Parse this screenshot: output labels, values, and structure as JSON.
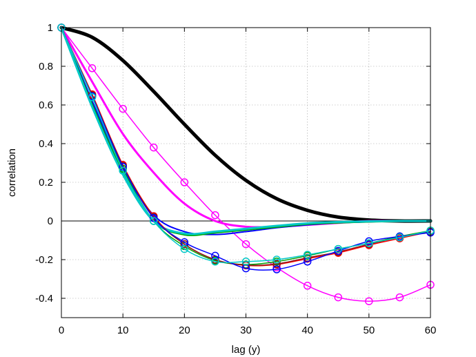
{
  "chart_data": {
    "type": "line",
    "title": "",
    "xlabel": "lag (y)",
    "ylabel": "correlation",
    "xlim": [
      0,
      60
    ],
    "ylim": [
      -0.5,
      1
    ],
    "xticks": [
      0,
      10,
      20,
      30,
      40,
      50,
      60
    ],
    "yticks": [
      -0.4,
      -0.2,
      0,
      0.2,
      0.4,
      0.6,
      0.8,
      1
    ],
    "ytick_labels": [
      "-0.4",
      "-0.2",
      "0",
      "0.2",
      "0.4",
      "0.6",
      "0.8",
      "1"
    ],
    "grid": true,
    "legend": "none",
    "zero_line": true,
    "series": [
      {
        "color": "#000000",
        "width": 5,
        "markers": false,
        "x": [
          0,
          5,
          10,
          15,
          20,
          25,
          30,
          35,
          40,
          45,
          50,
          55,
          60
        ],
        "y": [
          1.0,
          0.95,
          0.83,
          0.67,
          0.5,
          0.34,
          0.21,
          0.115,
          0.055,
          0.02,
          0.005,
          0.0,
          0.0
        ]
      },
      {
        "color": "#ff00ff",
        "width": 3,
        "markers": false,
        "x": [
          0,
          5,
          10,
          15,
          20,
          25,
          30,
          35,
          40,
          45,
          50,
          55,
          60
        ],
        "y": [
          1.0,
          0.72,
          0.45,
          0.25,
          0.09,
          0.0,
          -0.03,
          -0.03,
          -0.02,
          -0.01,
          0.0,
          0.0,
          0.0
        ]
      },
      {
        "color": "#ff00ff",
        "width": 1.5,
        "markers": true,
        "x": [
          0,
          5,
          10,
          15,
          20,
          25,
          30,
          35,
          40,
          45,
          50,
          55,
          60
        ],
        "y": [
          1.0,
          0.79,
          0.58,
          0.38,
          0.2,
          0.03,
          -0.12,
          -0.24,
          -0.335,
          -0.395,
          -0.415,
          -0.395,
          -0.33
        ]
      },
      {
        "color": "#0000ff",
        "width": 2,
        "markers": false,
        "x": [
          0,
          5,
          10,
          15,
          20,
          25,
          30,
          35,
          40,
          45,
          50,
          55,
          60
        ],
        "y": [
          1.0,
          0.62,
          0.27,
          0.03,
          -0.055,
          -0.07,
          -0.055,
          -0.035,
          -0.02,
          -0.01,
          -0.005,
          0.0,
          0.0
        ]
      },
      {
        "color": "#00aa00",
        "width": 3,
        "markers": false,
        "x": [
          0,
          5,
          10,
          15,
          20,
          25,
          30,
          35,
          40,
          45,
          50,
          55,
          60
        ],
        "y": [
          1.0,
          0.6,
          0.25,
          0.0,
          -0.07,
          -0.06,
          -0.045,
          -0.03,
          -0.015,
          -0.008,
          -0.003,
          0.0,
          0.0
        ]
      },
      {
        "color": "#00c8c8",
        "width": 3,
        "markers": false,
        "x": [
          0,
          5,
          10,
          15,
          20,
          25,
          30,
          35,
          40,
          45,
          50,
          55,
          60
        ],
        "y": [
          1.0,
          0.59,
          0.24,
          0.0,
          -0.065,
          -0.055,
          -0.04,
          -0.025,
          -0.012,
          -0.005,
          -0.002,
          0.0,
          0.0
        ]
      },
      {
        "color": "#ff0000",
        "width": 1.5,
        "markers": true,
        "x": [
          0,
          5,
          10,
          15,
          20,
          25,
          30,
          35,
          40,
          45,
          50,
          55,
          60
        ],
        "y": [
          1.0,
          0.655,
          0.29,
          0.025,
          -0.12,
          -0.2,
          -0.23,
          -0.225,
          -0.195,
          -0.165,
          -0.125,
          -0.09,
          -0.055
        ]
      },
      {
        "color": "#00a000",
        "width": 1.5,
        "markers": true,
        "x": [
          0,
          5,
          10,
          15,
          20,
          25,
          30,
          35,
          40,
          45,
          50,
          55,
          60
        ],
        "y": [
          1.0,
          0.645,
          0.27,
          0.0,
          -0.13,
          -0.205,
          -0.225,
          -0.21,
          -0.18,
          -0.145,
          -0.115,
          -0.08,
          -0.05
        ]
      },
      {
        "color": "#8b1a1a",
        "width": 1.5,
        "markers": true,
        "x": [
          0,
          5,
          10,
          15,
          20,
          25,
          30,
          35,
          40,
          45,
          50,
          55,
          60
        ],
        "y": [
          1.0,
          0.65,
          0.285,
          0.02,
          -0.12,
          -0.2,
          -0.228,
          -0.222,
          -0.19,
          -0.16,
          -0.12,
          -0.085,
          -0.055
        ]
      },
      {
        "color": "#0000ff",
        "width": 1.5,
        "markers": true,
        "x": [
          0,
          5,
          10,
          15,
          20,
          25,
          30,
          35,
          40,
          45,
          50,
          55,
          60
        ],
        "y": [
          1.0,
          0.645,
          0.28,
          0.015,
          -0.11,
          -0.18,
          -0.245,
          -0.25,
          -0.21,
          -0.155,
          -0.105,
          -0.08,
          -0.06
        ]
      },
      {
        "color": "#00c8c8",
        "width": 1.5,
        "markers": true,
        "x": [
          0,
          5,
          10,
          15,
          20,
          25,
          30,
          35,
          40,
          45,
          50,
          55,
          60
        ],
        "y": [
          1.0,
          0.64,
          0.26,
          0.0,
          -0.145,
          -0.21,
          -0.21,
          -0.2,
          -0.175,
          -0.145,
          -0.115,
          -0.085,
          -0.05
        ]
      }
    ]
  }
}
